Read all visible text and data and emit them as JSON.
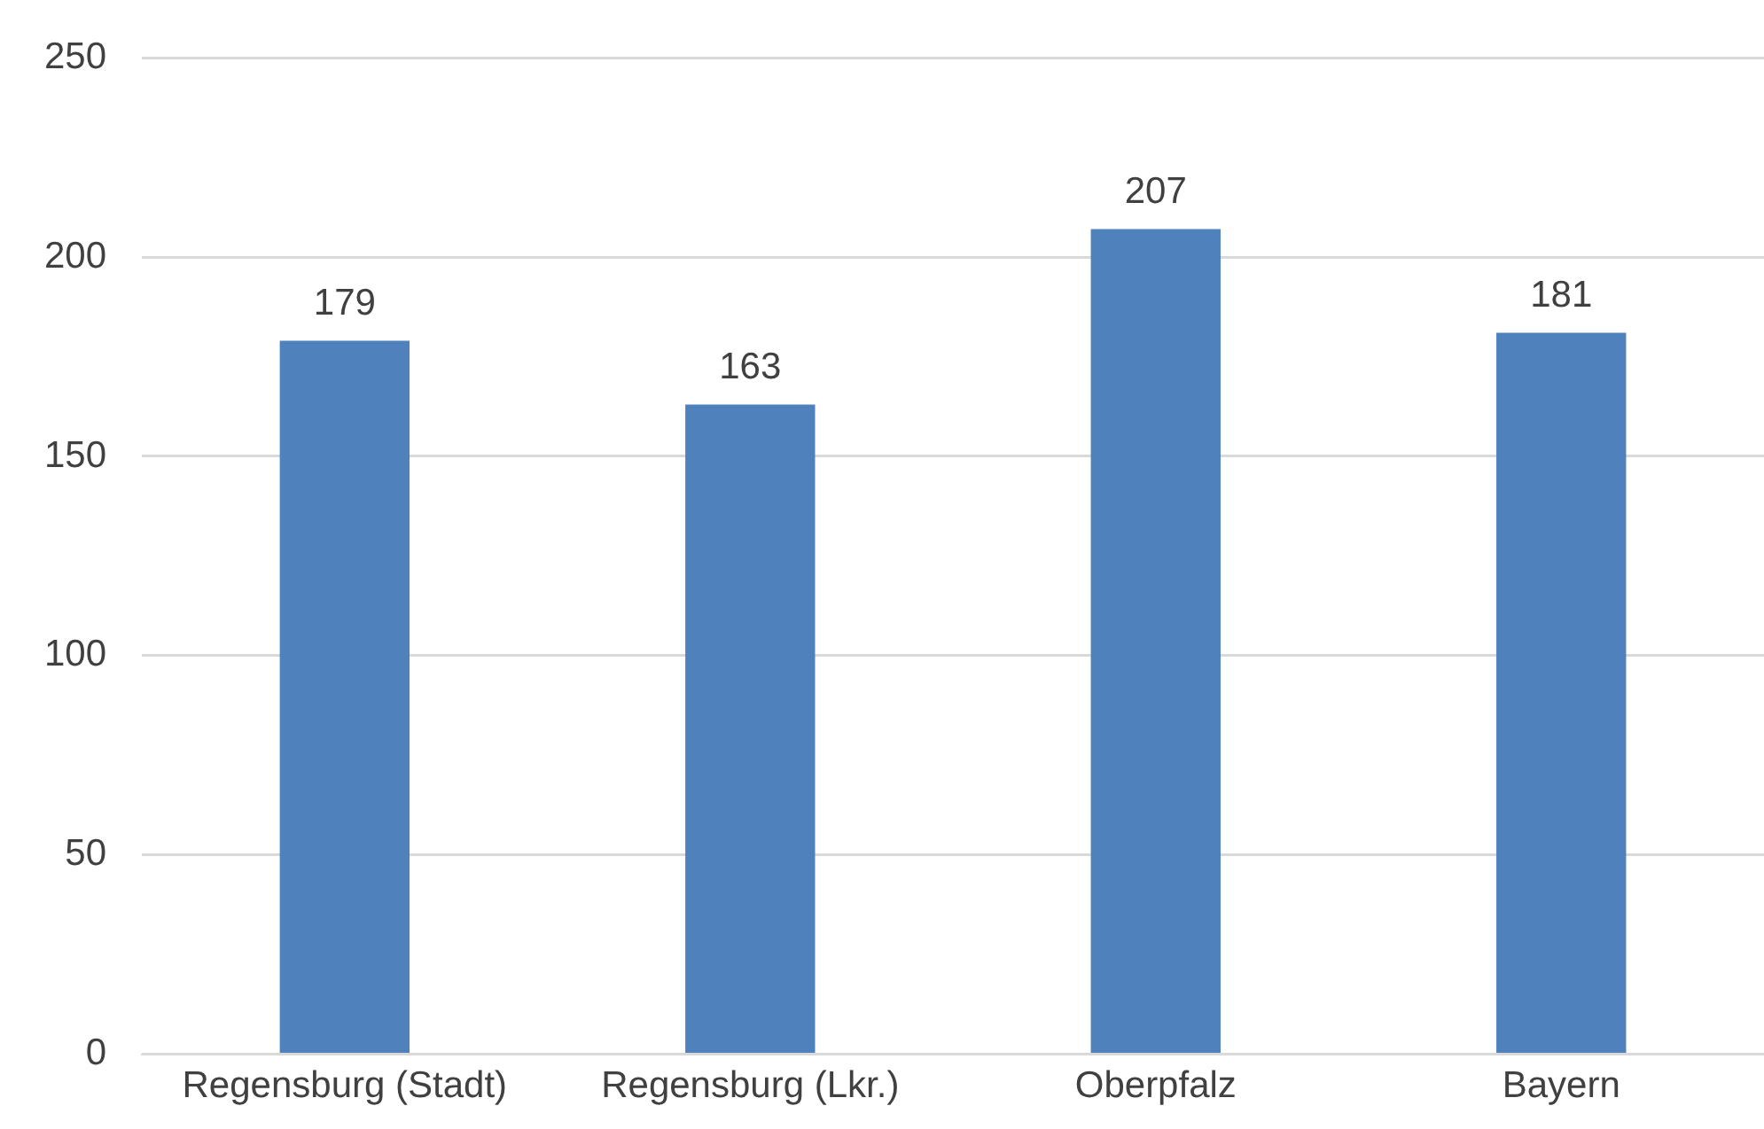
{
  "chart_data": {
    "type": "bar",
    "categories": [
      "Regensburg (Stadt)",
      "Regensburg (Lkr.)",
      "Oberpfalz",
      "Bayern"
    ],
    "values": [
      179,
      163,
      207,
      181
    ],
    "color": "#4f81bd",
    "ylim": [
      0,
      250
    ],
    "yticks": [
      0,
      50,
      100,
      150,
      200,
      250
    ],
    "grid": "y",
    "data_labels": true
  }
}
